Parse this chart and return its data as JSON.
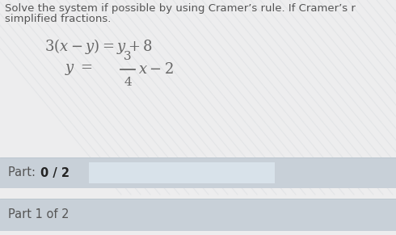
{
  "main_bg": "#ededee",
  "stripe_bg": "#e8e9ea",
  "header_text_line1": "Solve the system if possible by using Cramer’s rule. If Cramer’s r",
  "header_text_line2": "simplified fractions.",
  "part_bar_color": "#c8d0d8",
  "part_input_color": "#d8e2ea",
  "header_fontsize": 9.5,
  "eq_fontsize": 13,
  "part_fontsize": 10.5,
  "text_color": "#555555",
  "eq_color": "#666666",
  "bold_color": "#222222"
}
